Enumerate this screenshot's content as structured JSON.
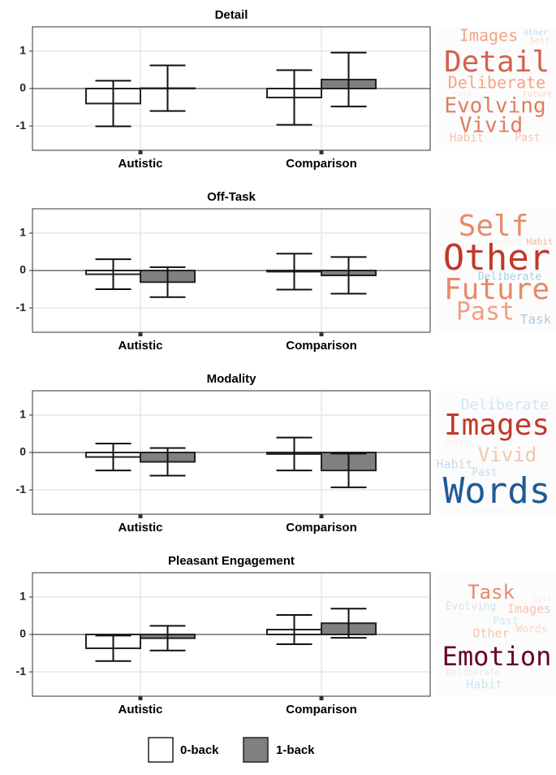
{
  "chart_data": [
    {
      "type": "bar",
      "title": "Detail",
      "categories": [
        "Autistic",
        "Comparison"
      ],
      "series": [
        {
          "name": "0-back",
          "color": "#ffffff",
          "values": [
            -0.4,
            -0.24
          ],
          "errors": [
            0.61,
            0.73
          ]
        },
        {
          "name": "1-back",
          "color": "#808080",
          "values": [
            0.01,
            0.24
          ],
          "errors": [
            0.61,
            0.72
          ]
        }
      ],
      "ylim": [
        -1.65,
        1.65
      ],
      "yticks": [
        -1,
        0,
        1
      ],
      "grid": true,
      "words": [
        {
          "text": "Other",
          "color": "#c6dbef"
        },
        {
          "text": "Self",
          "color": "#f9d8c8"
        },
        {
          "text": "Images",
          "color": "#f4a582"
        },
        {
          "text": "Detail",
          "color": "#d6604d"
        },
        {
          "text": "Deliberate",
          "color": "#f4a582"
        },
        {
          "text": "Task",
          "color": "#f5ede8"
        },
        {
          "text": "Future",
          "color": "#f9d8c8"
        },
        {
          "text": "Evolving",
          "color": "#e07b60"
        },
        {
          "text": "Vivid",
          "color": "#e07b60"
        },
        {
          "text": "Habit",
          "color": "#f6c3ab"
        },
        {
          "text": "Past",
          "color": "#f6c3ab"
        }
      ]
    },
    {
      "type": "bar",
      "title": "Off-Task",
      "categories": [
        "Autistic",
        "Comparison"
      ],
      "series": [
        {
          "color": "#ffffff",
          "values": [
            -0.1,
            -0.03
          ],
          "errors": [
            0.4,
            0.48
          ]
        },
        {
          "color": "#808080",
          "values": [
            -0.31,
            -0.13
          ],
          "errors": [
            0.4,
            0.49
          ]
        }
      ],
      "ylim": [
        -1.65,
        1.65
      ],
      "yticks": [
        -1,
        0,
        1
      ],
      "grid": true,
      "words": [
        {
          "text": "Self",
          "color": "#e8896a"
        },
        {
          "text": "Detail",
          "color": "#f3ece8"
        },
        {
          "text": "Habit",
          "color": "#f4b59c"
        },
        {
          "text": "Other",
          "color": "#c0392b"
        },
        {
          "text": "Deliberate",
          "color": "#a6cde3"
        },
        {
          "text": "Future",
          "color": "#e8896a"
        },
        {
          "text": "Past",
          "color": "#f0a080"
        },
        {
          "text": "Task",
          "color": "#a6cde3"
        }
      ]
    },
    {
      "type": "bar",
      "title": "Modality",
      "categories": [
        "Autistic",
        "Comparison"
      ],
      "series": [
        {
          "color": "#ffffff",
          "values": [
            -0.12,
            -0.04
          ],
          "errors": [
            0.36,
            0.44
          ]
        },
        {
          "color": "#808080",
          "values": [
            -0.25,
            -0.48
          ],
          "errors": [
            0.37,
            0.45
          ]
        }
      ],
      "ylim": [
        -1.65,
        1.65
      ],
      "yticks": [
        -1,
        0,
        1
      ],
      "grid": true,
      "words": [
        {
          "text": "Deliberate",
          "color": "#d1e5f0"
        },
        {
          "text": "Images",
          "color": "#c0392b"
        },
        {
          "text": "Detail",
          "color": "#f3ece8"
        },
        {
          "text": "Vivid",
          "color": "#f4c5ab"
        },
        {
          "text": "Habit",
          "color": "#c5dbe9"
        },
        {
          "text": "Past",
          "color": "#c5dbe9"
        },
        {
          "text": "Words",
          "color": "#1f5a96"
        },
        {
          "text": "Future",
          "color": "#eef2f5"
        }
      ]
    },
    {
      "type": "bar",
      "title": "Pleasant Engagement",
      "categories": [
        "Autistic",
        "Comparison"
      ],
      "series": [
        {
          "color": "#ffffff",
          "values": [
            -0.37,
            0.13
          ],
          "errors": [
            0.34,
            0.39
          ]
        },
        {
          "color": "#808080",
          "values": [
            -0.1,
            0.3
          ],
          "errors": [
            0.33,
            0.39
          ]
        }
      ],
      "ylim": [
        -1.65,
        1.65
      ],
      "yticks": [
        -1,
        0,
        1
      ],
      "grid": true,
      "words": [
        {
          "text": "Task",
          "color": "#e8896a"
        },
        {
          "text": "Self",
          "color": "#f3ece8"
        },
        {
          "text": "Evolving",
          "color": "#d1e5f0"
        },
        {
          "text": "Images",
          "color": "#f4c5ab"
        },
        {
          "text": "Past",
          "color": "#d1e5f0"
        },
        {
          "text": "Words",
          "color": "#f8d7c6"
        },
        {
          "text": "Other",
          "color": "#f4c5ab"
        },
        {
          "text": "Emotion",
          "color": "#67001f"
        },
        {
          "text": "Deliberate",
          "color": "#e8e8e8"
        },
        {
          "text": "Habit",
          "color": "#d1e5f0"
        }
      ]
    }
  ]
}
